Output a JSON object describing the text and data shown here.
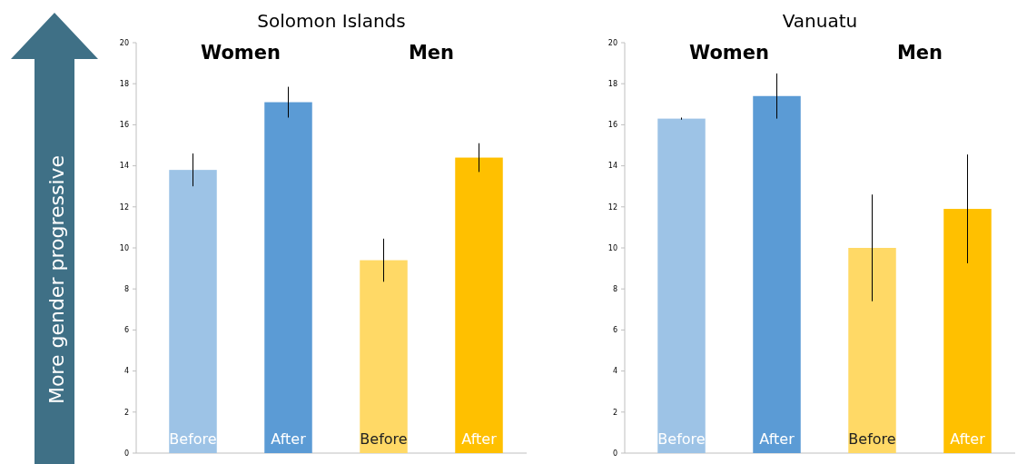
{
  "chart_data": [
    {
      "type": "bar",
      "title": "Solomon Islands",
      "ylabel": "More gender progressive",
      "categories": [
        "Before",
        "After",
        "Before",
        "After"
      ],
      "colors": [
        "#9dc3e6",
        "#5b9bd5",
        "#ffd966",
        "#ffc000"
      ],
      "values": [
        13.8,
        17.1,
        9.4,
        14.4
      ],
      "errors": [
        0.8,
        0.75,
        1.05,
        0.7
      ],
      "ylim": [
        0,
        20
      ],
      "yticks": [
        0,
        2,
        4,
        6,
        8,
        10,
        12,
        14,
        16,
        18,
        20
      ],
      "annotations": [
        "Women",
        "Men"
      ]
    },
    {
      "type": "bar",
      "title": "Vanuatu",
      "categories": [
        "Before",
        "After",
        "Before",
        "After"
      ],
      "colors": [
        "#9dc3e6",
        "#5b9bd5",
        "#ffd966",
        "#ffc000"
      ],
      "values": [
        16.3,
        17.4,
        10.0,
        11.9
      ],
      "errors": [
        0.05,
        1.1,
        2.6,
        2.65
      ],
      "ylim": [
        0,
        20
      ],
      "yticks": [
        0,
        2,
        4,
        6,
        8,
        10,
        12,
        14,
        16,
        18,
        20
      ],
      "annotations": [
        "Women",
        "Men"
      ]
    }
  ]
}
